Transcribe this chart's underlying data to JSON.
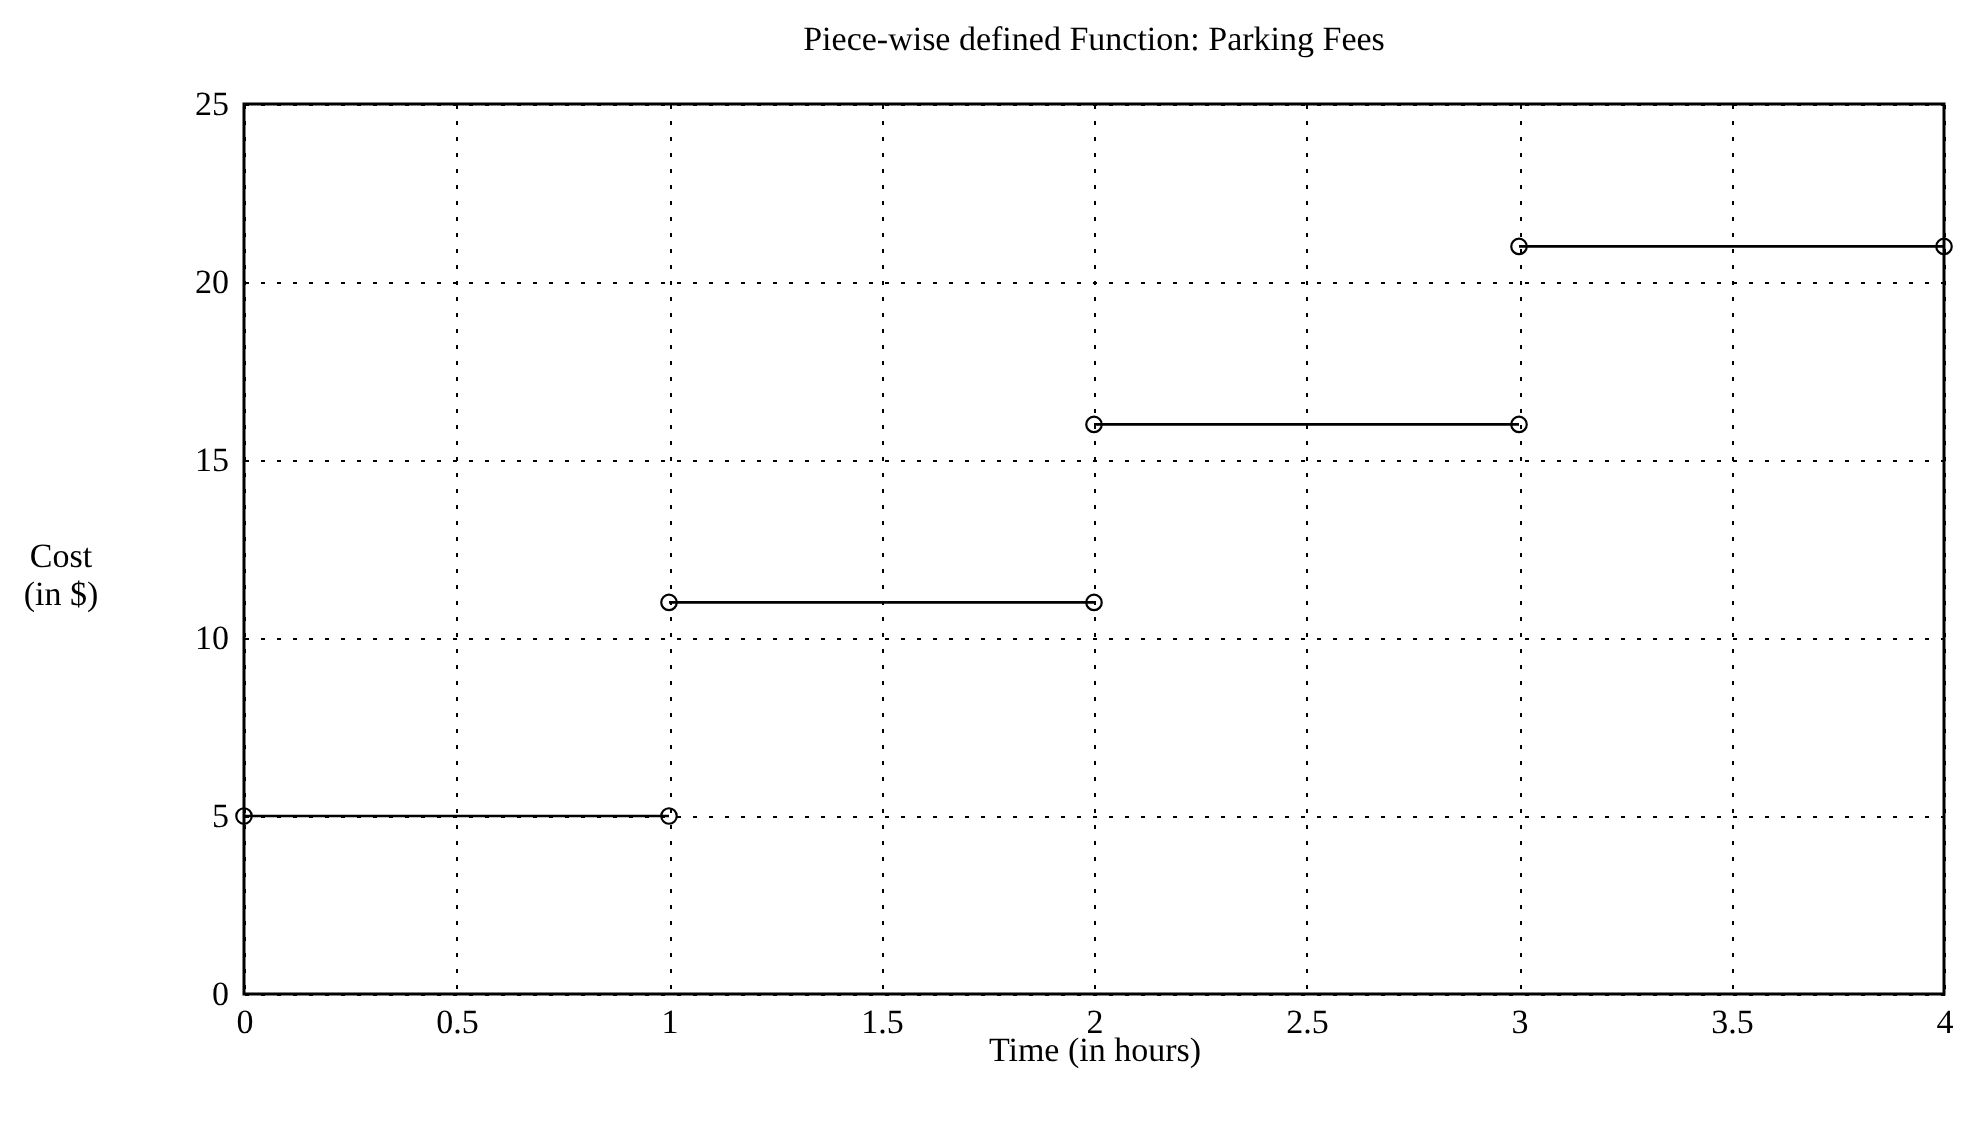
{
  "chart_data": {
    "type": "line",
    "title": "Piece-wise defined Function: Parking Fees",
    "xlabel": "Time (in hours)",
    "ylabel": "Cost\n(in $)",
    "series": [
      {
        "color": "#000000",
        "x": [
          0,
          1
        ],
        "values": [
          5,
          5
        ]
      },
      {
        "color": "#000000",
        "x": [
          1,
          2
        ],
        "values": [
          11,
          11
        ]
      },
      {
        "color": "#000000",
        "x": [
          2,
          3
        ],
        "values": [
          16,
          16
        ]
      },
      {
        "color": "#000000",
        "x": [
          3,
          4
        ],
        "values": [
          21,
          21
        ]
      }
    ],
    "xlim": [
      0,
      4
    ],
    "xticks": [
      0,
      0.5,
      1,
      1.5,
      2,
      2.5,
      3,
      3.5,
      4
    ],
    "ylim": [
      0,
      25
    ],
    "yticks": [
      0,
      5,
      10,
      15,
      20,
      25
    ],
    "grid": true,
    "marker": "circle",
    "line_style": "solid",
    "legend": false
  }
}
